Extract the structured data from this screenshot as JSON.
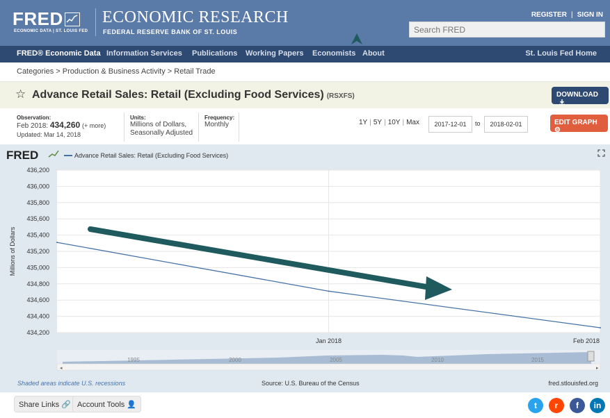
{
  "header": {
    "logo_text": "FRED",
    "logo_sub": "ECONOMIC DATA  |  ST. LOUIS FED",
    "econ_title": "ECONOMIC RESEARCH",
    "econ_sub": "FEDERAL RESERVE BANK OF ST. LOUIS",
    "register": "REGISTER",
    "sign_in": "SIGN IN",
    "search_placeholder": "Search FRED"
  },
  "nav": {
    "items": [
      "FRED® Economic Data",
      "Information Services",
      "Publications",
      "Working Papers",
      "Economists",
      "About"
    ],
    "right": "St. Louis Fed Home"
  },
  "breadcrumb": [
    "Categories",
    "Production & Business Activity",
    "Retail Trade"
  ],
  "series": {
    "title": "Advance Retail Sales: Retail (Excluding Food Services)",
    "code": "(RSXFS)",
    "download_label": "DOWNLOAD",
    "observation_label": "Observation:",
    "observation_date": "Feb 2018:",
    "observation_value": "434,260",
    "observation_more": "(+ more)",
    "updated": "Updated: Mar 14, 2018",
    "units_label": "Units:",
    "units_value_1": "Millions of Dollars,",
    "units_value_2": "Seasonally Adjusted",
    "frequency_label": "Frequency:",
    "frequency_value": "Monthly"
  },
  "controls": {
    "ranges": [
      "1Y",
      "5Y",
      "10Y",
      "Max"
    ],
    "start_date": "2017-12-01",
    "to_label": "to",
    "end_date": "2018-02-01",
    "edit_label": "EDIT GRAPH"
  },
  "chart_data": {
    "type": "line",
    "legend": "Advance Retail Sales: Retail (Excluding Food Services)",
    "ylabel": "Millions of Dollars",
    "x": [
      "2017-12",
      "2018-01",
      "2018-02"
    ],
    "x_ticks": [
      "Jan 2018",
      "Feb 2018"
    ],
    "values": [
      435310,
      434710,
      434260
    ],
    "ylim": [
      434200,
      436200
    ],
    "y_ticks": [
      434200,
      434400,
      434600,
      434800,
      435000,
      435200,
      435400,
      435600,
      435800,
      436000,
      436200
    ],
    "grid": true,
    "line_color": "#4572a7",
    "annotation": "dark teal arrow pointing down-right",
    "navigator_ticks": [
      "1995",
      "2000",
      "2005",
      "2010",
      "2015"
    ]
  },
  "chart_footer": {
    "recession_note": "Shaded areas indicate U.S. recessions",
    "source": "Source: U.S. Bureau of the Census",
    "site": "fred.stlouisfed.org"
  },
  "footer": {
    "share_links": "Share Links",
    "account_tools": "Account Tools"
  },
  "colors": {
    "header": "#5a7aa8",
    "nav": "#2f4a72",
    "download": "#2f4a72",
    "edit": "#e05d3e",
    "arrow": "#1e5a5e"
  }
}
